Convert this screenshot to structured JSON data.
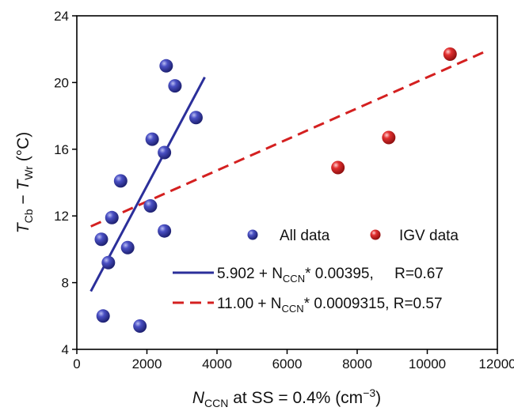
{
  "chart_data": {
    "type": "scatter",
    "xlabel": {
      "main": "N",
      "sub": "CCN",
      "rest": " at SS = 0.4% (cm",
      "sup": "−3",
      "end": ")"
    },
    "ylabel": {
      "a": "T",
      "a_sub": "Cb",
      "minus": " − ",
      "b": "T",
      "b_sub": "Wr",
      "unit": " (°C)"
    },
    "xlim": [
      0,
      12000
    ],
    "ylim": [
      4,
      24
    ],
    "xticks": [
      0,
      2000,
      4000,
      6000,
      8000,
      10000,
      12000
    ],
    "yticks": [
      4,
      8,
      12,
      16,
      20,
      24
    ],
    "grid": false,
    "legend_position": "center-right",
    "series": [
      {
        "name": "All data",
        "color": "#2b2f9a",
        "points": [
          {
            "x": 700,
            "y": 10.6
          },
          {
            "x": 750,
            "y": 6.0
          },
          {
            "x": 900,
            "y": 9.2
          },
          {
            "x": 1000,
            "y": 11.9
          },
          {
            "x": 1250,
            "y": 14.1
          },
          {
            "x": 1450,
            "y": 10.1
          },
          {
            "x": 1800,
            "y": 5.4
          },
          {
            "x": 2100,
            "y": 12.6
          },
          {
            "x": 2150,
            "y": 16.6
          },
          {
            "x": 2500,
            "y": 15.8
          },
          {
            "x": 2500,
            "y": 11.1
          },
          {
            "x": 2550,
            "y": 21.0
          },
          {
            "x": 2800,
            "y": 19.8
          },
          {
            "x": 3400,
            "y": 17.9
          }
        ]
      },
      {
        "name": "IGV data",
        "color": "#d42020",
        "points": [
          {
            "x": 7450,
            "y": 14.9
          },
          {
            "x": 8900,
            "y": 16.7
          },
          {
            "x": 10650,
            "y": 21.7
          }
        ]
      }
    ],
    "fits": [
      {
        "label": {
          "prefix": "5.902 + N",
          "sub": "CCN",
          "suffix": "* 0.00395,     R=0.67"
        },
        "intercept": 5.902,
        "slope": 0.00395,
        "x_range": [
          400,
          3650
        ],
        "color": "#2b2f9a",
        "style": "solid"
      },
      {
        "label": {
          "prefix": "11.00 + N",
          "sub": "CCN",
          "suffix": "* 0.0009315, R=0.57"
        },
        "intercept": 11.0,
        "slope": 0.0009315,
        "x_range": [
          400,
          11600
        ],
        "color": "#d42020",
        "style": "dashed"
      }
    ]
  }
}
